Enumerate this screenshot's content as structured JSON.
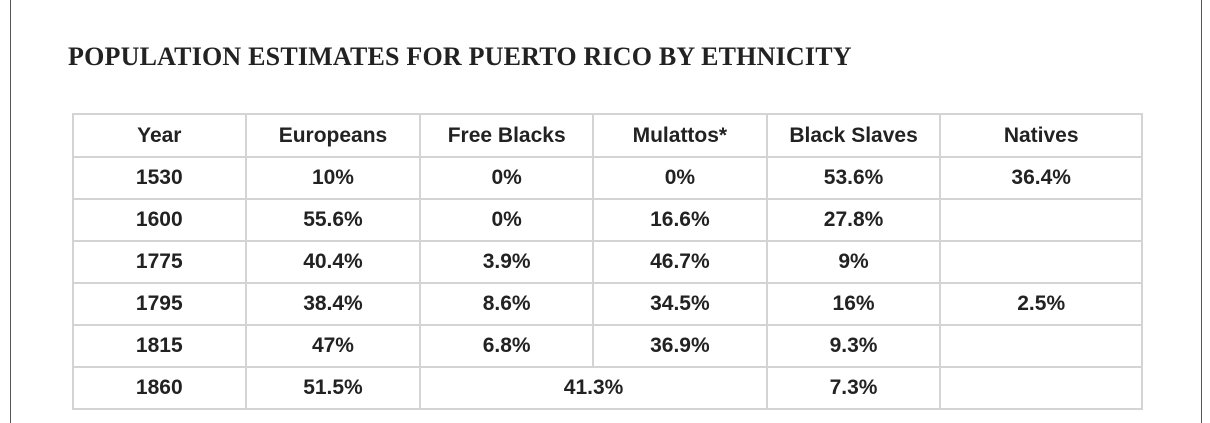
{
  "header": {
    "title": "POPULATION ESTIMATES FOR PUERTO RICO BY ETHNICITY"
  },
  "table": {
    "columns": [
      "Year",
      "Europeans",
      "Free Blacks",
      "Mulattos*",
      "Black Slaves",
      "Natives"
    ],
    "rows": [
      [
        "1530",
        "10%",
        "0%",
        "0%",
        "53.6%",
        "36.4%"
      ],
      [
        "1600",
        "55.6%",
        "0%",
        "16.6%",
        "27.8%",
        null
      ],
      [
        "1775",
        "40.4%",
        "3.9%",
        "46.7%",
        "9%",
        null
      ],
      [
        "1795",
        "38.4%",
        "8.6%",
        "34.5%",
        "16%",
        "2.5%"
      ],
      [
        "1815",
        "47%",
        "6.8%",
        "36.9%",
        "9.3%",
        null
      ],
      [
        "1860",
        "51.5%",
        {
          "text": "41.3%",
          "colspan": 2
        },
        "7.3%",
        null
      ]
    ]
  }
}
